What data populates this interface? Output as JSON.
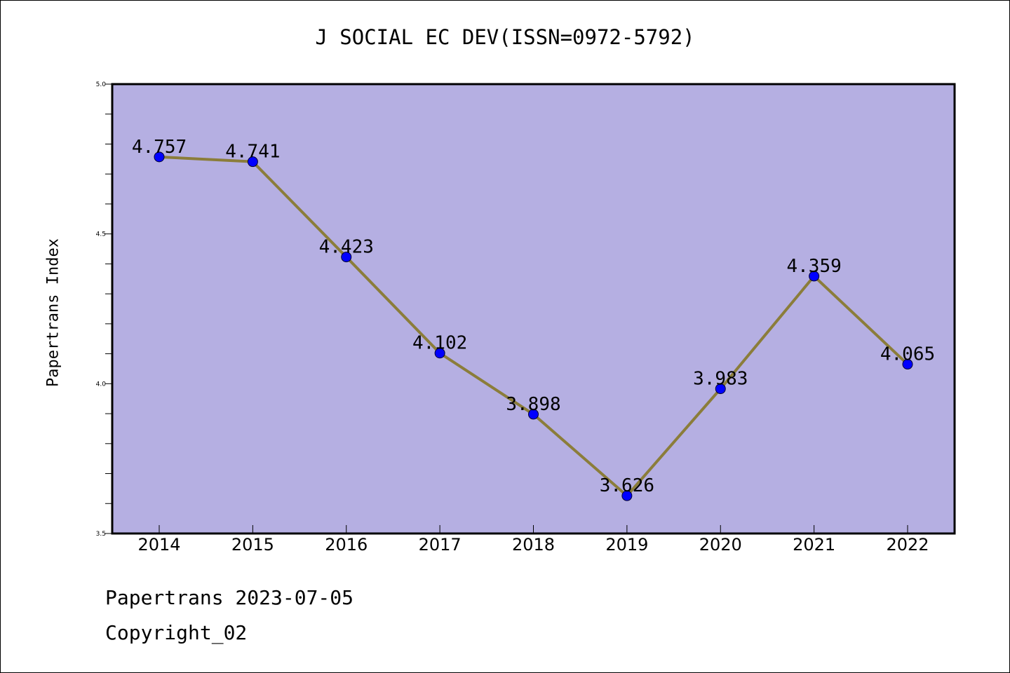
{
  "chart_data": {
    "type": "line",
    "title": "J SOCIAL EC DEV(ISSN=0972-5792)",
    "xlabel": "",
    "ylabel": "Papertrans Index",
    "categories": [
      "2014",
      "2015",
      "2016",
      "2017",
      "2018",
      "2019",
      "2020",
      "2021",
      "2022"
    ],
    "series": [
      {
        "values": [
          4.757,
          4.741,
          4.423,
          4.102,
          3.898,
          3.626,
          3.983,
          4.359,
          4.065
        ],
        "labels": [
          "4.757",
          "4.741",
          "4.423",
          "4.102",
          "3.898",
          "3.626",
          "3.983",
          "4.359",
          "4.065"
        ]
      }
    ],
    "ylim": [
      3.5,
      5.0
    ],
    "y_ticks": [
      "3.5",
      "4.0",
      "4.5",
      "5.0"
    ],
    "grid": false,
    "colors": {
      "plot_background": "#b5afe2",
      "line": "#8b7d3a",
      "marker": "#0000ff"
    }
  },
  "footer": {
    "line1": "Papertrans 2023-07-05",
    "line2": "Copyright_02"
  }
}
